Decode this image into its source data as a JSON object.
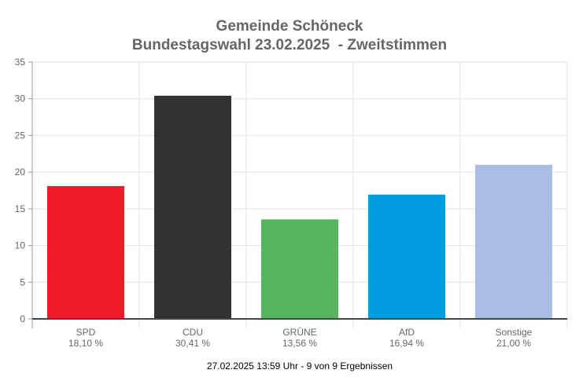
{
  "chart_data": {
    "type": "bar",
    "title": "Gemeinde Schöneck",
    "subtitle": "Bundestagswahl 23.02.2025  - Zweitstimmen",
    "categories": [
      "SPD",
      "CDU",
      "GRÜNE",
      "AfD",
      "Sonstige"
    ],
    "values": [
      18.1,
      30.41,
      13.56,
      16.94,
      21.0
    ],
    "value_labels": [
      "18,10 %",
      "30,41 %",
      "13,56 %",
      "16,94 %",
      "21,00 %"
    ],
    "colors": [
      "#ed1c27",
      "#333132",
      "#57b560",
      "#009ee0",
      "#aabee3"
    ],
    "ylim": [
      0,
      35
    ],
    "yticks": [
      "0",
      "5",
      "10",
      "15",
      "20",
      "25",
      "30",
      "35"
    ],
    "xlabel": "",
    "ylabel": "",
    "grid": true,
    "footer": "27.02.2025 13:59 Uhr - 9 von 9 Ergebnissen"
  }
}
